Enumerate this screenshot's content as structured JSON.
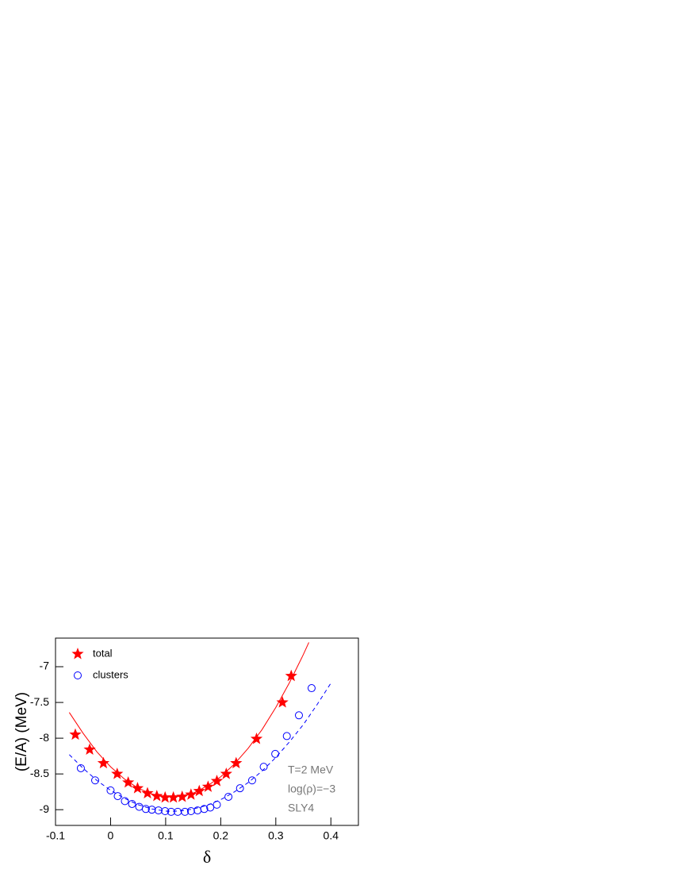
{
  "chart_data": {
    "type": "scatter",
    "xlabel": "δ",
    "ylabel": "(E/A) (MeV)",
    "xlim": [
      -0.1,
      0.45
    ],
    "ylim": [
      -9.22,
      -6.6
    ],
    "xticks": [
      -0.1,
      0,
      0.1,
      0.2,
      0.3,
      0.4
    ],
    "yticks": [
      -9,
      -8.5,
      -8,
      -7.5,
      -7
    ],
    "legend": "upper-left",
    "annotations": [
      "T=2 MeV",
      "log(ρ)=−3",
      "SLY4"
    ],
    "series": [
      {
        "name": "total",
        "color": "#ff0000",
        "marker": "star",
        "x": [
          -0.064,
          -0.038,
          -0.013,
          0.012,
          0.032,
          0.049,
          0.067,
          0.084,
          0.099,
          0.114,
          0.13,
          0.146,
          0.161,
          0.177,
          0.193,
          0.21,
          0.228,
          0.265,
          0.312,
          0.328
        ],
        "values": [
          -7.95,
          -8.16,
          -8.35,
          -8.5,
          -8.62,
          -8.7,
          -8.77,
          -8.81,
          -8.83,
          -8.83,
          -8.82,
          -8.79,
          -8.74,
          -8.68,
          -8.6,
          -8.5,
          -8.35,
          -8.01,
          -7.5,
          -7.13
        ]
      },
      {
        "name": "clusters",
        "color": "#0000ff",
        "marker": "circle",
        "x": [
          -0.054,
          -0.028,
          0.0,
          0.013,
          0.026,
          0.039,
          0.052,
          0.064,
          0.075,
          0.087,
          0.099,
          0.11,
          0.122,
          0.135,
          0.146,
          0.158,
          0.17,
          0.181,
          0.193,
          0.214,
          0.235,
          0.257,
          0.278,
          0.299,
          0.32,
          0.342,
          0.365
        ],
        "values": [
          -8.42,
          -8.59,
          -8.73,
          -8.81,
          -8.88,
          -8.92,
          -8.96,
          -8.99,
          -9.0,
          -9.01,
          -9.02,
          -9.03,
          -9.03,
          -9.03,
          -9.02,
          -9.01,
          -8.99,
          -8.97,
          -8.93,
          -8.82,
          -8.7,
          -8.59,
          -8.4,
          -8.22,
          -7.97,
          -7.68,
          -7.3
        ]
      }
    ],
    "fits": [
      {
        "color": "#ff0000",
        "dash": false,
        "x": [
          -0.075,
          -0.05,
          -0.025,
          0,
          0.025,
          0.05,
          0.075,
          0.1,
          0.125,
          0.15,
          0.175,
          0.2,
          0.225,
          0.25,
          0.275,
          0.3,
          0.325,
          0.35,
          0.36
        ],
        "values": [
          -7.64,
          -7.93,
          -8.19,
          -8.4,
          -8.57,
          -8.7,
          -8.78,
          -8.82,
          -8.81,
          -8.77,
          -8.67,
          -8.54,
          -8.36,
          -8.14,
          -7.88,
          -7.57,
          -7.22,
          -6.83,
          -6.66
        ]
      },
      {
        "color": "#0000ff",
        "dash": true,
        "x": [
          -0.075,
          -0.05,
          -0.025,
          0,
          0.025,
          0.05,
          0.075,
          0.1,
          0.125,
          0.15,
          0.175,
          0.2,
          0.225,
          0.25,
          0.275,
          0.3,
          0.325,
          0.35,
          0.375,
          0.4
        ],
        "values": [
          -8.23,
          -8.42,
          -8.59,
          -8.73,
          -8.84,
          -8.93,
          -8.99,
          -9.02,
          -9.02,
          -8.99,
          -8.94,
          -8.86,
          -8.75,
          -8.62,
          -8.46,
          -8.27,
          -8.05,
          -7.81,
          -7.53,
          -7.23
        ]
      }
    ]
  }
}
